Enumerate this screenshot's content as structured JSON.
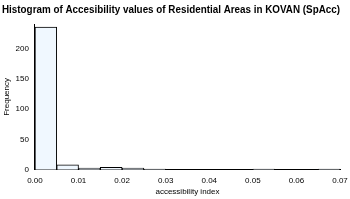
{
  "chart_data": {
    "type": "histogram",
    "title": "Histogram of Accesibility values of Residential Areas in KOVAN (SpAcc)",
    "x_label": "accessibility index",
    "y_label": "Frequency",
    "bins": [
      0,
      0.005,
      0.01,
      0.015,
      0.02,
      0.025,
      0.03,
      0.035,
      0.04,
      0.045,
      0.05,
      0.055,
      0.06,
      0.065,
      0.07
    ],
    "values": [
      235,
      8,
      3,
      4,
      3,
      1,
      0,
      0,
      0,
      0,
      1,
      0,
      0,
      1
    ],
    "color": "#f0f8ff",
    "xlim": [
      0,
      0.07
    ],
    "xticks": [
      {
        "value": 0,
        "label": "0.00"
      },
      {
        "value": 0.01,
        "label": "0.01"
      },
      {
        "value": 0.02,
        "label": "0.02"
      },
      {
        "value": 0.03,
        "label": "0.03"
      },
      {
        "value": 0.04,
        "label": "0.04"
      },
      {
        "value": 0.05,
        "label": "0.05"
      },
      {
        "value": 0.06,
        "label": "0.06"
      },
      {
        "value": 0.07,
        "label": "0.07"
      }
    ],
    "ylim": [
      0,
      240
    ],
    "yticks": [
      0,
      50,
      100,
      150,
      200
    ],
    "grid": false
  }
}
